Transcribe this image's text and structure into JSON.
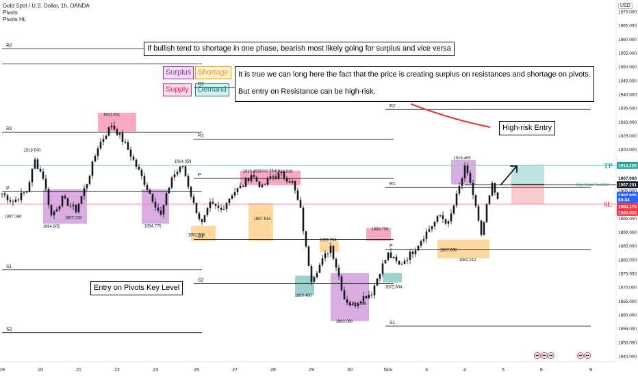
{
  "header": {
    "symbol_title": "Gold Spot / U.S. Dollar, 1h, OANDA",
    "indicator_1": "Pivots",
    "indicator_2": "Pivots HL",
    "currency": "USD"
  },
  "annotations": {
    "top_note": "If bullish tend to shortage in one phase, bearish most likely going for surplus and vice versa",
    "note_line1": "It is true we can long here the fact that the price is creating surplus on resistances and shortage on pivots.",
    "note_line2": "But entry on Resistance can be high-risk.",
    "high_risk": "High-risk Entry",
    "pivot_entry": "Entry on Pivots Key Level"
  },
  "legend": {
    "surplus": "Surplus",
    "shortage": "Shortage",
    "supply": "Supply",
    "demand": "Demand"
  },
  "trade": {
    "tp_label": "TP",
    "sl_label": "SL",
    "position_label": "Buy Stop Position"
  },
  "colors": {
    "candle": "#131722",
    "pivot_line": "#000000",
    "surplus": "#9c27b0",
    "shortage": "#ff9800",
    "supply": "#e91e63",
    "demand": "#00897b",
    "tp_zone": "#26a69a",
    "sl_zone": "#ef5350",
    "tp_line": "#80cbc4",
    "sl_line": "#f48fb1",
    "arrow_red": "#e53935"
  },
  "chart_data": {
    "type": "candlestick",
    "y_axis": {
      "min": 1843,
      "max": 1972,
      "ticks": [
        1970,
        1965,
        1960,
        1955,
        1950,
        1945,
        1940,
        1935,
        1930,
        1925,
        1920,
        1915,
        1910,
        1905,
        1900,
        1895,
        1890,
        1885,
        1880,
        1875,
        1870,
        1865,
        1860,
        1855,
        1850,
        1845
      ],
      "tick_labels": [
        "1970.000",
        "1965.000",
        "1960.000",
        "1955.000",
        "1950.000",
        "1945.000",
        "1940.000",
        "1935.000",
        "1930.000",
        "1925.000",
        "1920.000",
        "1915.000",
        "1910.000",
        "1905.000",
        "1900.000",
        "1895.000",
        "1890.000",
        "1885.000",
        "1880.000",
        "1875.000",
        "1870.000",
        "1865.000",
        "1860.000",
        "1855.000",
        "1850.000",
        "1845.000"
      ]
    },
    "x_axis": {
      "labels": [
        "19",
        "20",
        "21",
        "22",
        "23",
        "26",
        "27",
        "28",
        "29",
        "30",
        "Nov",
        "3",
        "4",
        "5",
        "6",
        "9"
      ],
      "label_bars": [
        0,
        14,
        28,
        42,
        56,
        71,
        85,
        99,
        113,
        127,
        141,
        155,
        169,
        183,
        197,
        215
      ]
    },
    "close_path": [
      [
        0,
        1904
      ],
      [
        4,
        1901
      ],
      [
        9,
        1905
      ],
      [
        12,
        1916
      ],
      [
        15,
        1910
      ],
      [
        18,
        1896
      ],
      [
        22,
        1902
      ],
      [
        27,
        1898
      ],
      [
        31,
        1908
      ],
      [
        35,
        1921
      ],
      [
        40,
        1929
      ],
      [
        43,
        1925
      ],
      [
        46,
        1920
      ],
      [
        50,
        1912
      ],
      [
        54,
        1904
      ],
      [
        58,
        1896
      ],
      [
        62,
        1910
      ],
      [
        66,
        1914
      ],
      [
        70,
        1900
      ],
      [
        73,
        1893
      ],
      [
        76,
        1900
      ],
      [
        80,
        1898
      ],
      [
        84,
        1904
      ],
      [
        88,
        1907
      ],
      [
        91,
        1911
      ],
      [
        95,
        1906
      ],
      [
        98,
        1910
      ],
      [
        102,
        1911
      ],
      [
        106,
        1908
      ],
      [
        109,
        1898
      ],
      [
        111,
        1884
      ],
      [
        113,
        1873
      ],
      [
        116,
        1878
      ],
      [
        120,
        1885
      ],
      [
        123,
        1874
      ],
      [
        125,
        1866
      ],
      [
        128,
        1863
      ],
      [
        131,
        1866
      ],
      [
        135,
        1868
      ],
      [
        138,
        1876
      ],
      [
        141,
        1882
      ],
      [
        145,
        1878
      ],
      [
        150,
        1883
      ],
      [
        155,
        1890
      ],
      [
        160,
        1896
      ],
      [
        163,
        1893
      ],
      [
        166,
        1903
      ],
      [
        169,
        1913
      ],
      [
        171,
        1908
      ],
      [
        173,
        1899
      ],
      [
        175,
        1888
      ],
      [
        177,
        1899
      ],
      [
        179,
        1907
      ],
      [
        181,
        1902
      ]
    ],
    "zones": [
      {
        "kind": "surplus",
        "x0": 15,
        "x1": 31,
        "y0": 1893,
        "y1": 1905.5
      },
      {
        "kind": "surplus",
        "x0": 51,
        "x1": 61,
        "y0": 1893,
        "y1": 1905.5
      },
      {
        "kind": "supply",
        "x0": 35,
        "x1": 49,
        "y0": 1926.5,
        "y1": 1933.3
      },
      {
        "kind": "shortage",
        "x0": 69,
        "x1": 78,
        "y0": 1886.8,
        "y1": 1892.3
      },
      {
        "kind": "supply",
        "x0": 87,
        "x1": 109,
        "y0": 1907,
        "y1": 1912.3
      },
      {
        "kind": "shortage",
        "x0": 90,
        "x1": 99,
        "y0": 1886.8,
        "y1": 1900.5
      },
      {
        "kind": "demand",
        "x0": 107,
        "x1": 114,
        "y0": 1867,
        "y1": 1874.2
      },
      {
        "kind": "shortage",
        "x0": 116,
        "x1": 123,
        "y0": 1882.8,
        "y1": 1886.8
      },
      {
        "kind": "surplus",
        "x0": 120,
        "x1": 134,
        "y0": 1857.7,
        "y1": 1875.2
      },
      {
        "kind": "supply",
        "x0": 133,
        "x1": 142,
        "y0": 1886.8,
        "y1": 1891.5
      },
      {
        "kind": "demand",
        "x0": 139,
        "x1": 146,
        "y0": 1871.7,
        "y1": 1875.2
      },
      {
        "kind": "shortage",
        "x0": 159,
        "x1": 178,
        "y0": 1880.5,
        "y1": 1887.3
      },
      {
        "kind": "surplus",
        "x0": 164,
        "x1": 173,
        "y0": 1907.3,
        "y1": 1916.2
      }
    ],
    "pivot_levels": [
      {
        "label": "R2",
        "x0": 0,
        "x1": 73,
        "y": 1956.5
      },
      {
        "label": "",
        "x0": 0,
        "x1": 73,
        "y": 1951
      },
      {
        "label": "R1",
        "x0": 0,
        "x1": 73,
        "y": 1926.3
      },
      {
        "label": "P",
        "x0": 0,
        "x1": 73,
        "y": 1904.7
      },
      {
        "label": "S1",
        "x0": 0,
        "x1": 73,
        "y": 1876.3
      },
      {
        "label": "S2",
        "x0": 0,
        "x1": 73,
        "y": 1853.5
      },
      {
        "label": "R2",
        "x0": 70,
        "x1": 143,
        "y": 1942.5
      },
      {
        "label": "R1",
        "x0": 70,
        "x1": 143,
        "y": 1923.7
      },
      {
        "label": "P",
        "x0": 70,
        "x1": 143,
        "y": 1909.5
      },
      {
        "label": "S1",
        "x0": 70,
        "x1": 143,
        "y": 1887.3
      },
      {
        "label": "S2",
        "x0": 70,
        "x1": 143,
        "y": 1871.4
      },
      {
        "label": "R2",
        "x0": 140,
        "x1": 215,
        "y": 1934.5
      },
      {
        "label": "R1",
        "x0": 140,
        "x1": 215,
        "y": 1906.2
      },
      {
        "label": "P",
        "x0": 140,
        "x1": 215,
        "y": 1883.7
      },
      {
        "label": "S1",
        "x0": 140,
        "x1": 215,
        "y": 1855.9
      }
    ],
    "price_annotations": [
      {
        "text": "1918.540",
        "bar": 11,
        "price": 1918.5,
        "pos": "above"
      },
      {
        "text": "1897.166",
        "bar": 4,
        "price": 1897.2,
        "pos": "below"
      },
      {
        "text": "1894.605",
        "bar": 18,
        "price": 1893.6,
        "pos": "below"
      },
      {
        "text": "1897.738",
        "bar": 26,
        "price": 1896.7,
        "pos": "below"
      },
      {
        "text": "1931.401",
        "bar": 40,
        "price": 1931.4,
        "pos": "above"
      },
      {
        "text": "1914.359",
        "bar": 66,
        "price": 1914.4,
        "pos": "above"
      },
      {
        "text": "1894.775",
        "bar": 55,
        "price": 1893.7,
        "pos": "below"
      },
      {
        "text": "1891.508",
        "bar": 71,
        "price": 1890.5,
        "pos": "below"
      },
      {
        "text": "1910.455",
        "bar": 91,
        "price": 1910.8,
        "pos": "above"
      },
      {
        "text": "1911.354",
        "bar": 97,
        "price": 1911.0,
        "pos": "above"
      },
      {
        "text": "1910.526",
        "bar": 103,
        "price": 1910.8,
        "pos": "above"
      },
      {
        "text": "1897.514",
        "bar": 95,
        "price": 1896.3,
        "pos": "below"
      },
      {
        "text": "1886.054",
        "bar": 119,
        "price": 1886.0,
        "pos": "above"
      },
      {
        "text": "1869.460",
        "bar": 110,
        "price": 1868.5,
        "pos": "below"
      },
      {
        "text": "1889.756",
        "bar": 138,
        "price": 1889.9,
        "pos": "above"
      },
      {
        "text": "1872.504",
        "bar": 143,
        "price": 1871.7,
        "pos": "below"
      },
      {
        "text": "1864.396",
        "bar": 130,
        "price": 1865.6,
        "pos": "below"
      },
      {
        "text": "1860.080",
        "bar": 125,
        "price": 1859.1,
        "pos": "below"
      },
      {
        "text": "1887.096",
        "bar": 163,
        "price": 1885.0,
        "pos": "below"
      },
      {
        "text": "1882.212",
        "bar": 170,
        "price": 1881.5,
        "pos": "below"
      },
      {
        "text": "1916.405",
        "bar": 168,
        "price": 1915.7,
        "pos": "above"
      }
    ],
    "trade_setup": {
      "entry": 1907.201,
      "take_profit": 1914.226,
      "stop_loss": 1900.176,
      "x0": 186,
      "x1": 198
    },
    "price_tags": [
      {
        "text": "1914.226",
        "price": 1914.226,
        "color": "#26a69a"
      },
      {
        "text": "1907.000",
        "price": 1909.6,
        "color": "#131722",
        "inverted": false
      },
      {
        "text": "1907.201",
        "price": 1907.201,
        "color": "#131722"
      },
      {
        "text": "1902.826",
        "price": 1903.4,
        "color": "#2962ff"
      },
      {
        "text": "59:34",
        "price": 1901.8,
        "color": "#2962ff"
      },
      {
        "text": "1900.176",
        "price": 1899.3,
        "color": "#f23645"
      },
      {
        "text": "1900.033",
        "price": 1897.1,
        "color": "#f23645"
      }
    ]
  }
}
